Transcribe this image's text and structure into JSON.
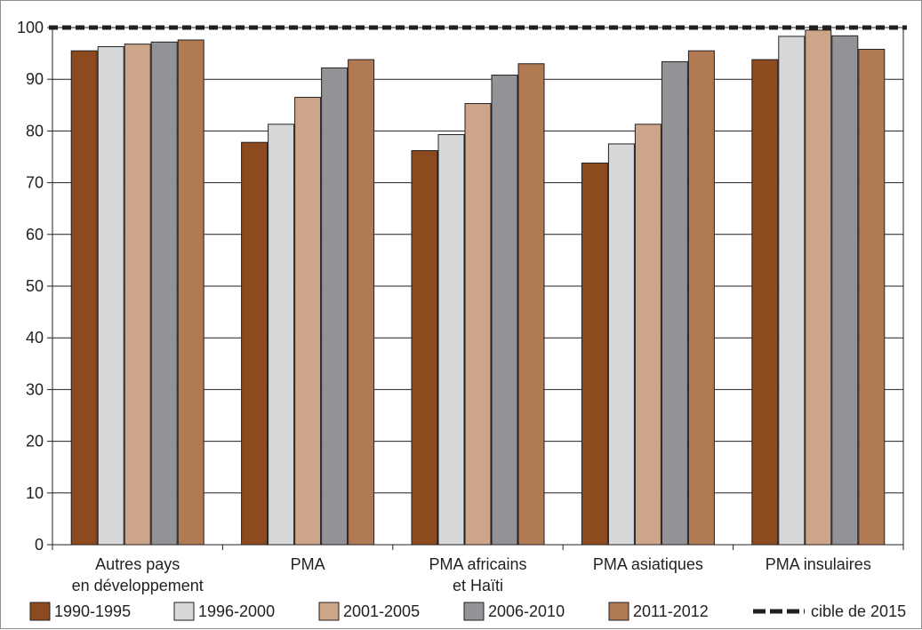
{
  "chart_data": {
    "type": "bar",
    "categories": [
      [
        "Autres pays",
        "en développement"
      ],
      [
        "PMA"
      ],
      [
        "PMA africains",
        "et Haïti"
      ],
      [
        "PMA asiatiques"
      ],
      [
        "PMA insulaires"
      ]
    ],
    "series": [
      {
        "name": "1990-1995",
        "color": "#8e4a1f",
        "values": [
          95.5,
          77.8,
          76.2,
          73.8,
          93.8
        ]
      },
      {
        "name": "1996-2000",
        "color": "#d7d8da",
        "values": [
          96.3,
          81.3,
          79.3,
          77.5,
          98.3
        ]
      },
      {
        "name": "2001-2005",
        "color": "#cda68a",
        "values": [
          96.8,
          86.5,
          85.3,
          81.3,
          99.5
        ]
      },
      {
        "name": "2006-2010",
        "color": "#919396",
        "values": [
          97.2,
          92.2,
          90.8,
          93.4,
          98.4
        ]
      },
      {
        "name": "2011-2012",
        "color": "#b07a53",
        "values": [
          97.6,
          93.8,
          93.0,
          95.5,
          95.8
        ]
      }
    ],
    "target": {
      "name": "cible de 2015",
      "value": 100
    },
    "ylim": [
      0,
      100
    ],
    "yticks": [
      0,
      10,
      20,
      30,
      40,
      50,
      60,
      70,
      80,
      90,
      100
    ],
    "grid": true,
    "legend": "bottom",
    "title": "",
    "xlabel": "",
    "ylabel": ""
  }
}
